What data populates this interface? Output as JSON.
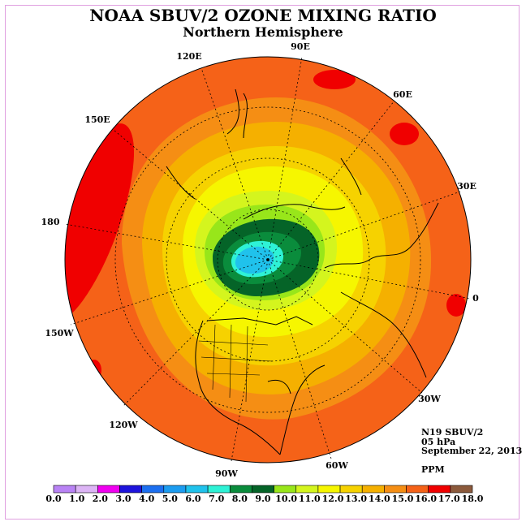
{
  "title": "NOAA SBUV/2 OZONE MIXING RATIO",
  "subtitle": "Northern Hemisphere",
  "longitude_labels": [
    "90E",
    "60E",
    "30E",
    "0",
    "30W",
    "60W",
    "90W",
    "120W",
    "150W",
    "180",
    "150E",
    "120E"
  ],
  "info": {
    "satellite": "N19 SBUV/2",
    "level": "05 hPa",
    "date": "September 22, 2013",
    "units": "PPM"
  },
  "colorbar": {
    "ticks": [
      "0.0",
      "1.0",
      "2.0",
      "3.0",
      "4.0",
      "5.0",
      "6.0",
      "7.0",
      "8.0",
      "9.0",
      "10.0",
      "11.0",
      "12.0",
      "13.0",
      "14.0",
      "15.0",
      "16.0",
      "17.0",
      "18.0"
    ],
    "colors": [
      "#b983f5",
      "#dcb4f5",
      "#f000f0",
      "#1e14dc",
      "#1c6ff0",
      "#1c9cf0",
      "#20c2ec",
      "#2ef2d6",
      "#0a8c3c",
      "#056428",
      "#98e61a",
      "#d4f51e",
      "#f6f600",
      "#f6d200",
      "#f5b000",
      "#f58e14",
      "#f56218",
      "#f00000",
      "#8c5a3c"
    ]
  }
}
